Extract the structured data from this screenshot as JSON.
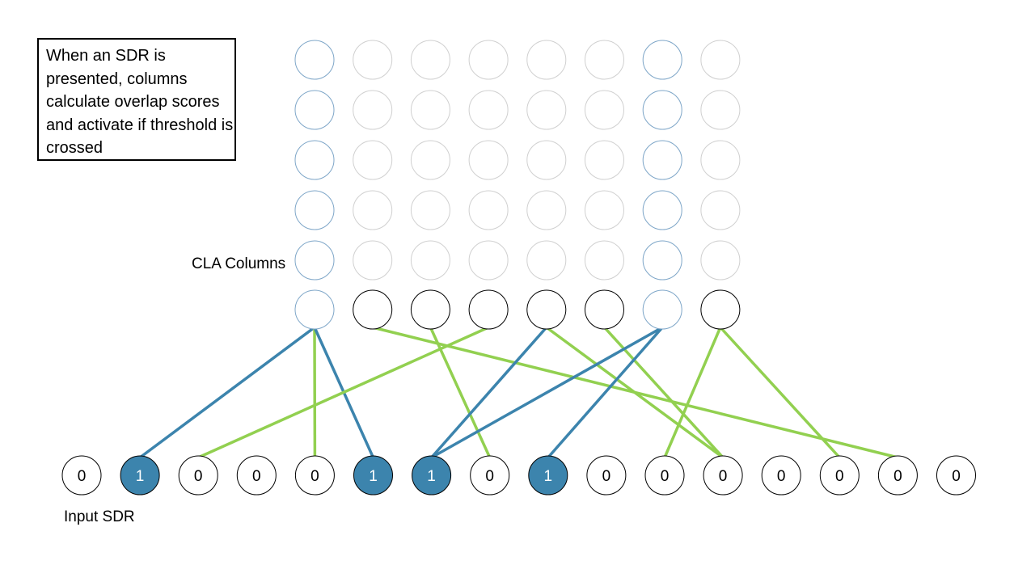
{
  "callout": {
    "text": "When an SDR is presented, columns calculate overlap scores and activate if threshold is crossed"
  },
  "labels": {
    "columns": "CLA Columns",
    "input": "Input SDR"
  },
  "colors": {
    "active_fill": "#3c84ad",
    "active_line": "#3c84ad",
    "inactive_line": "#92d050",
    "active_column_outline": "#7ea6c8",
    "faded_cell_outline": "#d0d0d0",
    "circle_outline": "#000000"
  },
  "columns": {
    "count": 8,
    "cell_rows": 5,
    "active": [
      0,
      6
    ]
  },
  "input_sdr": {
    "bits": [
      "0",
      "1",
      "0",
      "0",
      "0",
      "1",
      "1",
      "0",
      "1",
      "0",
      "0",
      "0",
      "0",
      "0",
      "0",
      "0"
    ]
  },
  "connections": [
    {
      "column": 0,
      "input": 1,
      "connected": true
    },
    {
      "column": 0,
      "input": 4,
      "connected": false
    },
    {
      "column": 0,
      "input": 5,
      "connected": true
    },
    {
      "column": 1,
      "input": 14,
      "connected": false
    },
    {
      "column": 2,
      "input": 7,
      "connected": false
    },
    {
      "column": 3,
      "input": 2,
      "connected": false
    },
    {
      "column": 4,
      "input": 6,
      "connected": true
    },
    {
      "column": 4,
      "input": 11,
      "connected": false
    },
    {
      "column": 5,
      "input": 11,
      "connected": false
    },
    {
      "column": 6,
      "input": 6,
      "connected": true
    },
    {
      "column": 6,
      "input": 8,
      "connected": true
    },
    {
      "column": 7,
      "input": 10,
      "connected": false
    },
    {
      "column": 7,
      "input": 13,
      "connected": false
    }
  ]
}
